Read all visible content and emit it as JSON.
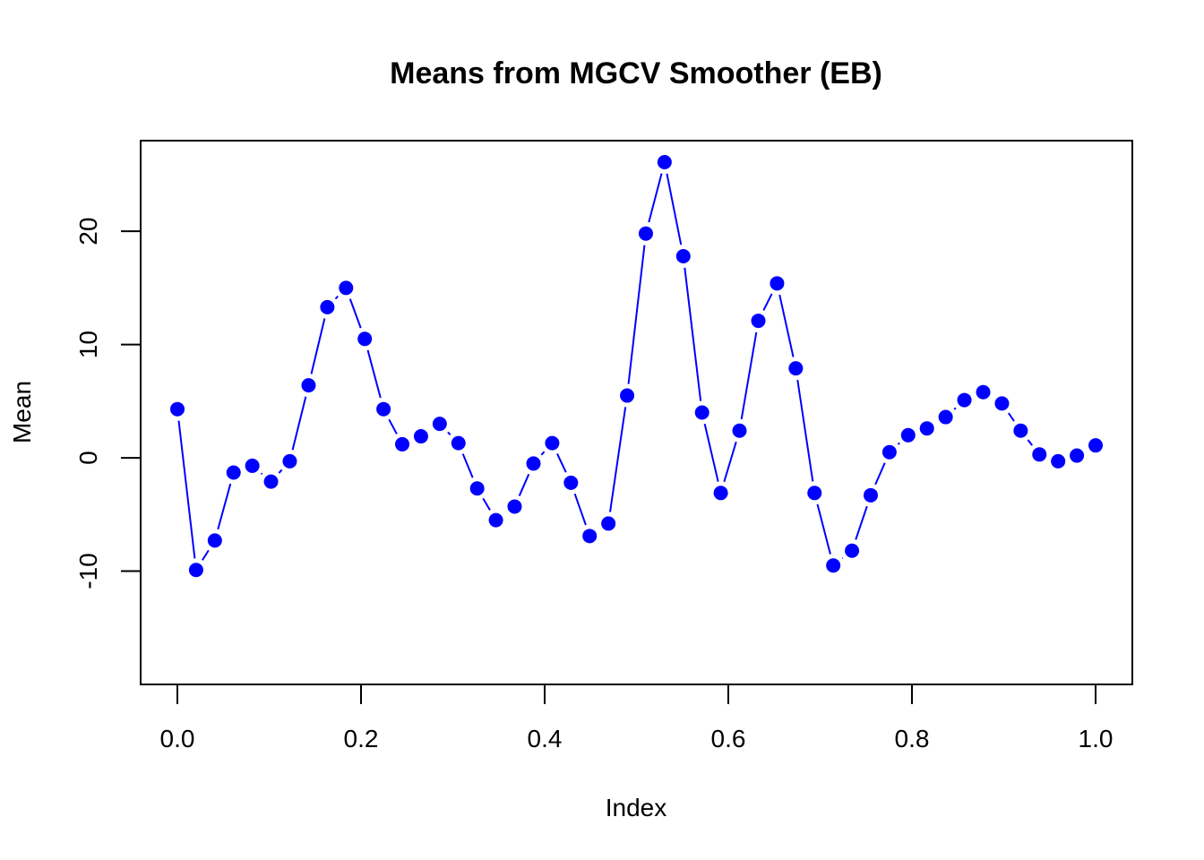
{
  "chart_data": {
    "type": "line",
    "title": "Means from MGCV Smoother (EB)",
    "xlabel": "Index",
    "ylabel": "Mean",
    "xlim": [
      -0.04,
      1.04
    ],
    "ylim": [
      -20,
      28
    ],
    "x_ticks": [
      0.0,
      0.2,
      0.4,
      0.6,
      0.8,
      1.0
    ],
    "x_tick_labels": [
      "0.0",
      "0.2",
      "0.4",
      "0.6",
      "0.8",
      "1.0"
    ],
    "y_ticks": [
      -10,
      0,
      10,
      20
    ],
    "y_tick_labels": [
      "-10",
      "0",
      "10",
      "20"
    ],
    "grid": false,
    "line_style": "overplotted points and lines",
    "series": [
      {
        "color": "#0000ff",
        "x": [
          0.0,
          0.0204,
          0.0408,
          0.0612,
          0.0816,
          0.102,
          0.1224,
          0.1429,
          0.1633,
          0.1837,
          0.2041,
          0.2245,
          0.2449,
          0.2653,
          0.2857,
          0.3061,
          0.3265,
          0.3469,
          0.3673,
          0.3878,
          0.4082,
          0.4286,
          0.449,
          0.4694,
          0.4898,
          0.5102,
          0.5306,
          0.551,
          0.5714,
          0.5918,
          0.6122,
          0.6327,
          0.6531,
          0.6735,
          0.6939,
          0.7143,
          0.7347,
          0.7551,
          0.7755,
          0.7959,
          0.8163,
          0.8367,
          0.8571,
          0.8776,
          0.898,
          0.9184,
          0.9388,
          0.9592,
          0.9796,
          1.0
        ],
        "values": [
          4.3,
          -9.9,
          -7.3,
          -1.3,
          -0.7,
          -2.1,
          -0.3,
          6.4,
          13.3,
          15.0,
          10.5,
          4.3,
          1.2,
          1.9,
          3.0,
          1.3,
          -2.7,
          -5.5,
          -4.3,
          -0.5,
          1.3,
          -2.2,
          -6.9,
          -5.8,
          5.5,
          19.8,
          26.1,
          17.8,
          4.0,
          -3.1,
          2.4,
          12.1,
          15.4,
          7.9,
          -3.1,
          -9.5,
          -8.2,
          -3.3,
          0.5,
          2.0,
          2.6,
          3.6,
          5.1,
          5.8,
          4.8,
          2.4,
          0.3,
          -0.3,
          0.2,
          1.1
        ]
      }
    ]
  }
}
